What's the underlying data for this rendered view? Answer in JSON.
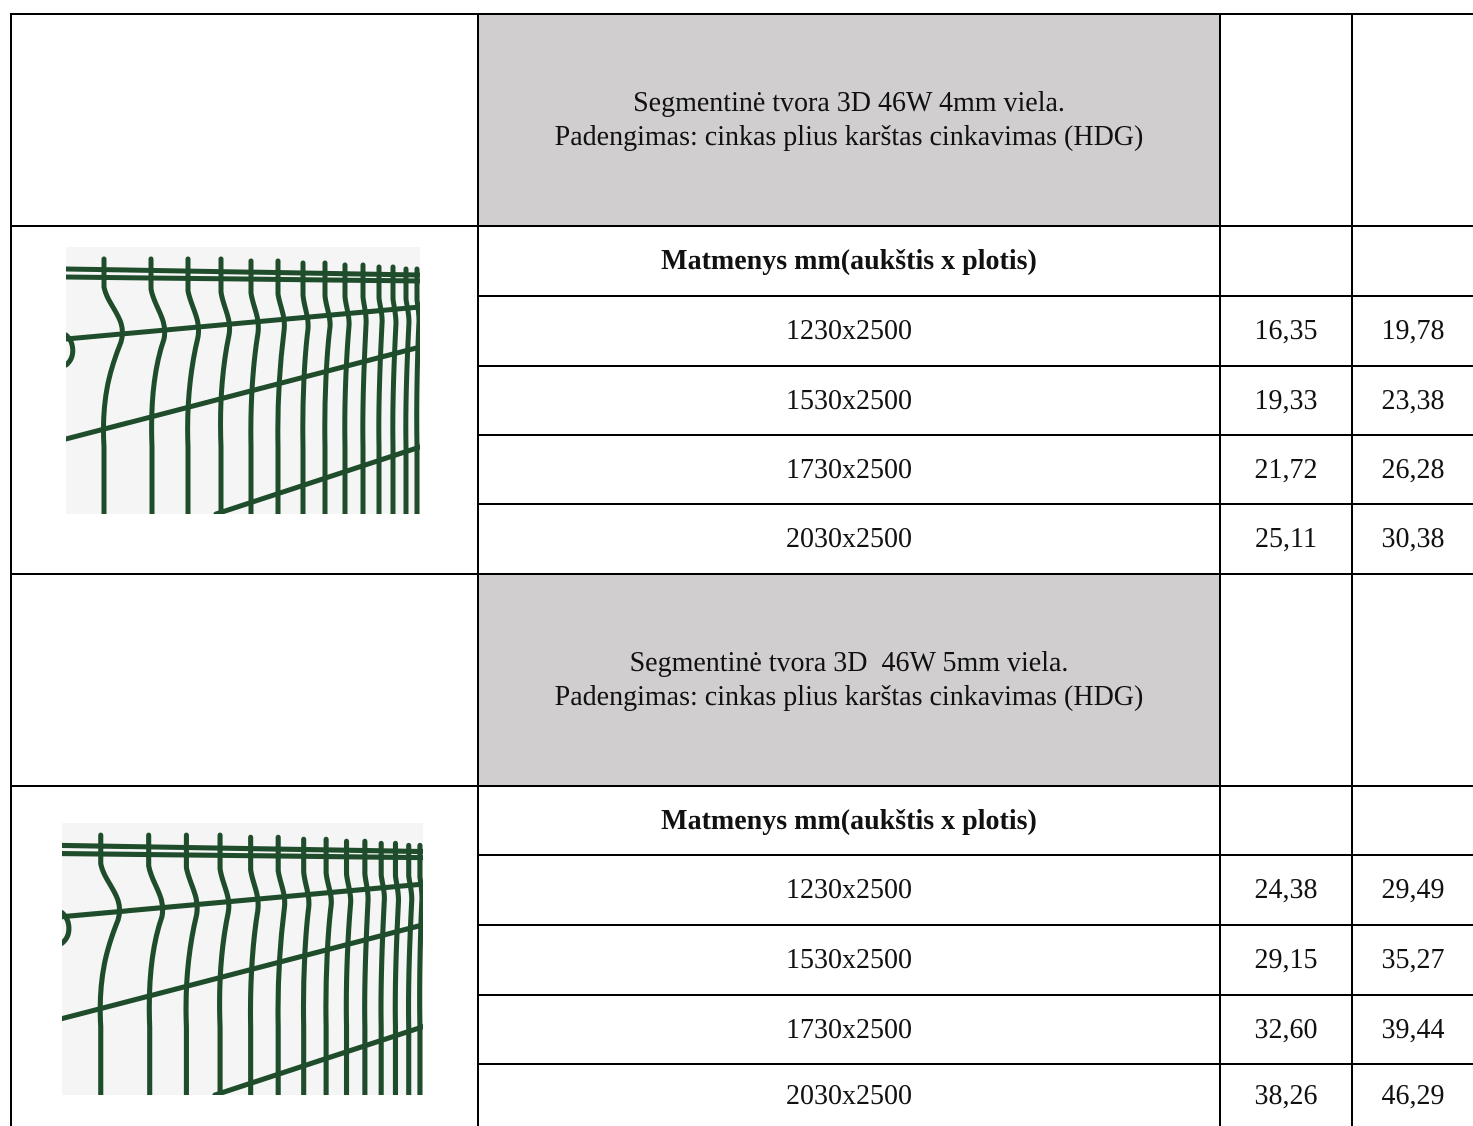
{
  "sections": [
    {
      "title_line1": "Segmentinė tvora 3D 46W 4mm viela.",
      "title_line2": "Padengimas: cinkas plius karštas cinkavimas (HDG)",
      "header": "Matmenys mm(aukštis x plotis)",
      "image": "green-3d-fence-panel",
      "rows": [
        {
          "size": "1230x2500",
          "price1": "16,35",
          "price2": "19,78"
        },
        {
          "size": "1530x2500",
          "price1": "19,33",
          "price2": "23,38"
        },
        {
          "size": "1730x2500",
          "price1": "21,72",
          "price2": "26,28"
        },
        {
          "size": "2030x2500",
          "price1": "25,11",
          "price2": "30,38"
        }
      ]
    },
    {
      "title_line1": "Segmentinė tvora 3D  46W 5mm viela.",
      "title_line2": "Padengimas: cinkas plius karštas cinkavimas (HDG)",
      "header": "Matmenys mm(aukštis x plotis)",
      "image": "green-3d-fence-panel",
      "rows": [
        {
          "size": "1230x2500",
          "price1": "24,38",
          "price2": "29,49"
        },
        {
          "size": "1530x2500",
          "price1": "29,15",
          "price2": "35,27"
        },
        {
          "size": "1730x2500",
          "price1": "32,60",
          "price2": "39,44"
        },
        {
          "size": "2030x2500",
          "price1": "38,26",
          "price2": "46,29"
        }
      ]
    }
  ],
  "colors": {
    "title_fill": "#d0cecf",
    "fence_green": "#1f4d2c"
  }
}
